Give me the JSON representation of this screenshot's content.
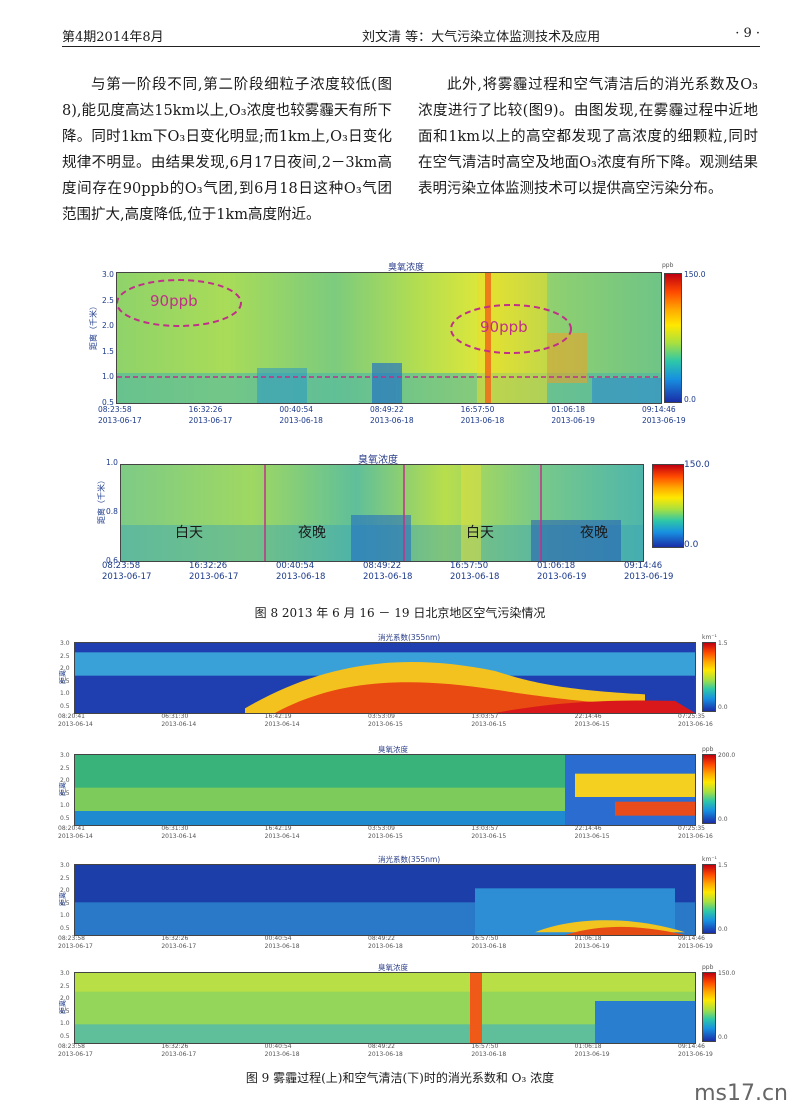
{
  "header": {
    "issue": "第4期2014年8月",
    "title": "刘文清  等：大气污染立体监测技术及应用",
    "page": "· 9 ·"
  },
  "body": {
    "left_para": "与第一阶段不同,第二阶段细粒子浓度较低(图8),能见度高达15km以上,O₃浓度也较雾霾天有所下降。同时1km下O₃日变化明显;而1km上,O₃日变化规律不明显。由结果发现,6月17日夜间,2－3km高度间存在90ppb的O₃气团,到6月18日这种O₃气团范围扩大,高度降低,位于1km高度附近。",
    "right_para": "此外,将雾霾过程和空气清洁后的消光系数及O₃浓度进行了比较(图9)。由图发现,在雾霾过程中近地面和1km以上的高空都发现了高浓度的细颗粒,同时在空气清洁时高空及地面O₃浓度有所下降。观测结果表明污染立体监测技术可以提供高空污染分布。"
  },
  "fig8": {
    "caption": "图 8    2013 年 6 月 16 － 19 日北京地区空气污染情况",
    "top": {
      "title": "臭氧浓度",
      "ylabel": "距离（千米）",
      "yticks": [
        "3.0",
        "2.5",
        "2.0",
        "1.5",
        "1.0",
        "0.5"
      ],
      "xticks_time": [
        "08:23:58",
        "16:32:26",
        "00:40:54",
        "08:49:22",
        "16:57:50",
        "01:06:18",
        "09:14:46"
      ],
      "xticks_date": [
        "2013-06-17",
        "2013-06-17",
        "2013-06-18",
        "2013-06-18",
        "2013-06-18",
        "2013-06-19",
        "2013-06-19"
      ],
      "unit": "ppb",
      "cbar_max": "150.0",
      "cbar_min": "0.0",
      "annotation1": "90ppb",
      "annotation2": "90ppb"
    },
    "bottom": {
      "title": "臭氧浓度",
      "ylabel": "距离（千米）",
      "yticks": [
        "1.0",
        "0.8",
        "0.6"
      ],
      "xticks_time": [
        "08:23:58",
        "16:32:26",
        "00:40:54",
        "08:49:22",
        "16:57:50",
        "01:06:18",
        "09:14:46"
      ],
      "xticks_date": [
        "2013-06-17",
        "2013-06-17",
        "2013-06-18",
        "2013-06-18",
        "2013-06-18",
        "2013-06-19",
        "2013-06-19"
      ],
      "cbar_max": "150.0",
      "cbar_min": "0.0",
      "labels": [
        "白天",
        "夜晚",
        "白天",
        "夜晚"
      ]
    }
  },
  "fig9": {
    "caption": "图 9    雾霾过程(上)和空气清洁(下)时的消光系数和 O₃ 浓度",
    "panels": [
      {
        "title": "消光系数(355nm)",
        "ylabel": "距离",
        "yticks": [
          "3.0",
          "2.5",
          "2.0",
          "1.5",
          "1.0",
          "0.5"
        ],
        "xticks_time": [
          "08:20:41",
          "06:31:30",
          "16:42:19",
          "03:53:09",
          "13:03:57",
          "22:14:46",
          "07:25:35"
        ],
        "xticks_date": [
          "2013-06-14",
          "2013-06-14",
          "2013-06-14",
          "2013-06-15",
          "2013-06-15",
          "2013-06-15",
          "2013-06-16"
        ],
        "unit": "km⁻¹",
        "cbar_max": "1.5",
        "cbar_min": "0.0"
      },
      {
        "title": "臭氧浓度",
        "ylabel": "距离",
        "yticks": [
          "3.0",
          "2.5",
          "2.0",
          "1.5",
          "1.0",
          "0.5"
        ],
        "xticks_time": [
          "08:20:41",
          "06:31:30",
          "16:42:19",
          "03:53:09",
          "13:03:57",
          "22:14:46",
          "07:25:35"
        ],
        "xticks_date": [
          "2013-06-14",
          "2013-06-14",
          "2013-06-14",
          "2013-06-15",
          "2013-06-15",
          "2013-06-15",
          "2013-06-16"
        ],
        "unit": "ppb",
        "cbar_max": "200.0",
        "cbar_min": "0.0"
      },
      {
        "title": "消光系数(355nm)",
        "ylabel": "距离",
        "yticks": [
          "3.0",
          "2.5",
          "2.0",
          "1.5",
          "1.0",
          "0.5"
        ],
        "xticks_time": [
          "08:23:58",
          "16:32:26",
          "00:40:54",
          "08:49:22",
          "16:57:50",
          "01:06:18",
          "09:14:46"
        ],
        "xticks_date": [
          "2013-06-17",
          "2013-06-17",
          "2013-06-18",
          "2013-06-18",
          "2013-06-18",
          "2013-06-19",
          "2013-06-19"
        ],
        "unit": "km⁻¹",
        "cbar_max": "1.5",
        "cbar_min": "0.0"
      },
      {
        "title": "臭氧浓度",
        "ylabel": "距离",
        "yticks": [
          "3.0",
          "2.5",
          "2.0",
          "1.5",
          "1.0",
          "0.5"
        ],
        "xticks_time": [
          "08:23:58",
          "16:32:26",
          "00:40:54",
          "08:49:22",
          "16:57:50",
          "01:06:18",
          "09:14:46"
        ],
        "xticks_date": [
          "2013-06-17",
          "2013-06-17",
          "2013-06-18",
          "2013-06-18",
          "2013-06-18",
          "2013-06-19",
          "2013-06-19"
        ],
        "unit": "ppb",
        "cbar_max": "150.0",
        "cbar_min": "0.0"
      }
    ]
  },
  "watermark": "ms17.cn"
}
